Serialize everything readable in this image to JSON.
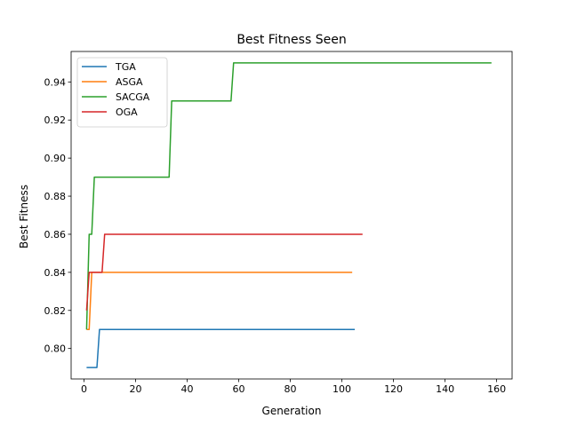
{
  "chart_data": {
    "type": "line",
    "title": "Best Fitness Seen",
    "xlabel": "Generation",
    "ylabel": "Best Fitness",
    "xlim": [
      -5,
      166
    ],
    "ylim": [
      0.784,
      0.956
    ],
    "xticks": [
      0,
      20,
      40,
      60,
      80,
      100,
      120,
      140,
      160
    ],
    "xtick_labels": [
      "0",
      "20",
      "40",
      "60",
      "80",
      "100",
      "120",
      "140",
      "160"
    ],
    "yticks": [
      0.8,
      0.82,
      0.84,
      0.86,
      0.88,
      0.9,
      0.92,
      0.94
    ],
    "ytick_labels": [
      "0.80",
      "0.82",
      "0.84",
      "0.86",
      "0.88",
      "0.90",
      "0.92",
      "0.94"
    ],
    "grid": false,
    "legend_position": "top-left",
    "series": [
      {
        "name": "TGA",
        "color": "#1f77b4",
        "x": [
          1,
          5,
          6,
          105
        ],
        "y": [
          0.79,
          0.79,
          0.81,
          0.81
        ]
      },
      {
        "name": "ASGA",
        "color": "#ff7f0e",
        "x": [
          1,
          2,
          3,
          104
        ],
        "y": [
          0.81,
          0.81,
          0.84,
          0.84
        ]
      },
      {
        "name": "SACGA",
        "color": "#2ca02c",
        "x": [
          1,
          2,
          3,
          4,
          33,
          34,
          57,
          58,
          158
        ],
        "y": [
          0.81,
          0.86,
          0.86,
          0.89,
          0.89,
          0.93,
          0.93,
          0.95,
          0.95
        ]
      },
      {
        "name": "OGA",
        "color": "#d62728",
        "x": [
          1,
          2,
          7,
          8,
          108
        ],
        "y": [
          0.82,
          0.84,
          0.84,
          0.86,
          0.86
        ]
      }
    ]
  }
}
